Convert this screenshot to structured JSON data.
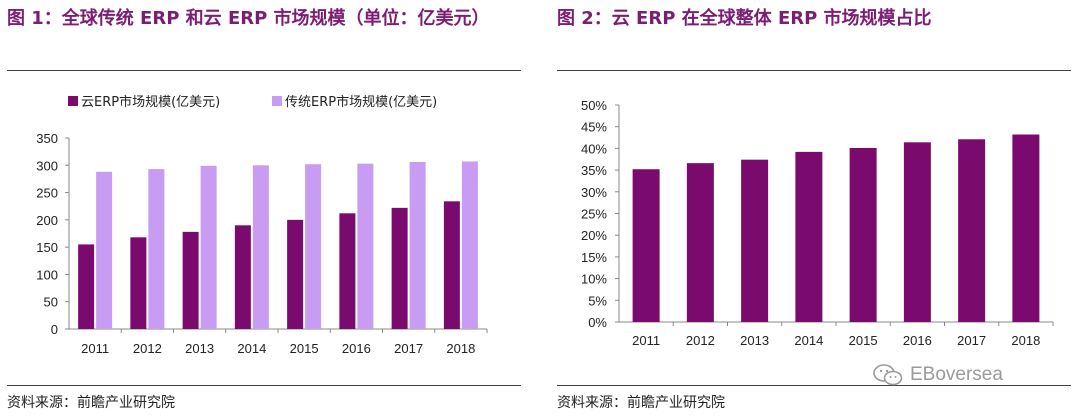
{
  "figure1": {
    "title": "图 1：全球传统 ERP 和云 ERP 市场规模（单位：亿美元）",
    "source": "资料来源：前瞻产业研究院"
  },
  "figure2": {
    "title": "图 2：云 ERP 在全球整体 ERP 市场规模占比",
    "source": "资料来源：前瞻产业研究院"
  },
  "watermark": {
    "text": "EBoversea",
    "icon": "wechat-icon"
  },
  "colors": {
    "dark": "#7b0a6e",
    "light": "#c89cf2",
    "title": "#7b1d74"
  },
  "chart_data": [
    {
      "type": "bar",
      "title": "",
      "categories": [
        "2011",
        "2012",
        "2013",
        "2014",
        "2015",
        "2016",
        "2017",
        "2018"
      ],
      "series": [
        {
          "name": "云ERP市场规模(亿美元)",
          "values": [
            155,
            168,
            178,
            190,
            200,
            212,
            222,
            234
          ]
        },
        {
          "name": "传统ERP市场规模(亿美元)",
          "values": [
            288,
            293,
            299,
            300,
            302,
            303,
            306,
            307
          ]
        }
      ],
      "ylim": [
        0,
        350
      ],
      "yticks": [
        0,
        50,
        100,
        150,
        200,
        250,
        300,
        350
      ],
      "legend": "top",
      "grid": false
    },
    {
      "type": "bar",
      "title": "",
      "categories": [
        "2011",
        "2012",
        "2013",
        "2014",
        "2015",
        "2016",
        "2017",
        "2018"
      ],
      "values": [
        35.2,
        36.6,
        37.4,
        39.2,
        40.1,
        41.4,
        42.1,
        43.2
      ],
      "ylim": [
        0,
        50
      ],
      "yticks": [
        "0%",
        "5%",
        "10%",
        "15%",
        "20%",
        "25%",
        "30%",
        "35%",
        "40%",
        "45%",
        "50%"
      ],
      "grid": false
    }
  ]
}
